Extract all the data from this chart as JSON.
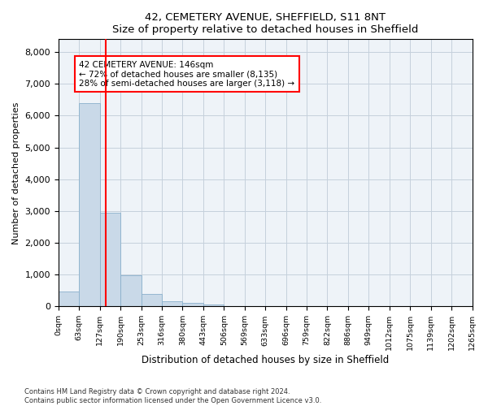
{
  "title1": "42, CEMETERY AVENUE, SHEFFIELD, S11 8NT",
  "title2": "Size of property relative to detached houses in Sheffield",
  "xlabel": "Distribution of detached houses by size in Sheffield",
  "ylabel": "Number of detached properties",
  "bin_labels": [
    "0sqm",
    "63sqm",
    "127sqm",
    "190sqm",
    "253sqm",
    "316sqm",
    "380sqm",
    "443sqm",
    "506sqm",
    "569sqm",
    "633sqm",
    "696sqm",
    "759sqm",
    "822sqm",
    "886sqm",
    "949sqm",
    "1012sqm",
    "1075sqm",
    "1139sqm",
    "1202sqm",
    "1265sqm"
  ],
  "bar_values": [
    470,
    6400,
    2950,
    970,
    390,
    160,
    110,
    70,
    0,
    0,
    0,
    0,
    0,
    0,
    0,
    0,
    0,
    0,
    0,
    0
  ],
  "bar_color": "#c9d9e8",
  "bar_edge_color": "#8ab0cc",
  "redline_x": 2.3,
  "annotation_label": "42 CEMETERY AVENUE: 146sqm",
  "annotation_line1": "← 72% of detached houses are smaller (8,135)",
  "annotation_line2": "28% of semi-detached houses are larger (3,118) →",
  "ylim": [
    0,
    8400
  ],
  "yticks": [
    0,
    1000,
    2000,
    3000,
    4000,
    5000,
    6000,
    7000,
    8000
  ],
  "footer1": "Contains HM Land Registry data © Crown copyright and database right 2024.",
  "footer2": "Contains public sector information licensed under the Open Government Licence v3.0.",
  "bg_color": "#eef3f8",
  "grid_color": "#c5d0dc"
}
